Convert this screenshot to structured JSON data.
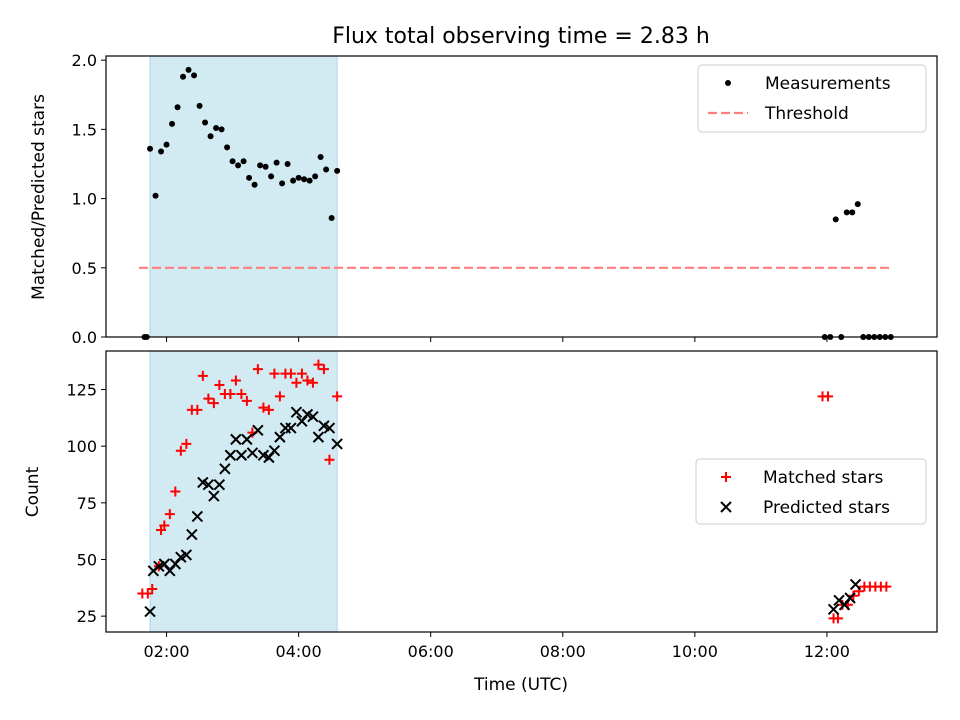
{
  "chart_data": {
    "title": "Flux total observing time = 2.83 h",
    "xlabel": "Time (UTC)",
    "xlim": [
      "01:05",
      "13:40"
    ],
    "x_ticks": [
      "02:00",
      "04:00",
      "06:00",
      "08:00",
      "10:00",
      "12:00"
    ],
    "shaded_span": {
      "x": [
        "01:45",
        "04:35"
      ],
      "color": "#add8e6"
    },
    "panels": [
      {
        "type": "scatter",
        "ylabel": "Matched/Predicted stars",
        "ylim": [
          0,
          2.03
        ],
        "y_ticks": [
          "0.0",
          "0.5",
          "1.0",
          "1.5",
          "2.0"
        ],
        "legend_position": "top-right",
        "series": [
          {
            "name": "Measurements",
            "marker": "dot",
            "color": "#000000",
            "points": [
              [
                "01:40",
                0
              ],
              [
                "01:42",
                0
              ],
              [
                "01:45",
                1.36
              ],
              [
                "01:50",
                1.02
              ],
              [
                "01:55",
                1.34
              ],
              [
                "02:00",
                1.39
              ],
              [
                "02:05",
                1.54
              ],
              [
                "02:10",
                1.66
              ],
              [
                "02:15",
                1.88
              ],
              [
                "02:20",
                1.93
              ],
              [
                "02:25",
                1.89
              ],
              [
                "02:30",
                1.67
              ],
              [
                "02:35",
                1.55
              ],
              [
                "02:40",
                1.45
              ],
              [
                "02:45",
                1.51
              ],
              [
                "02:50",
                1.5
              ],
              [
                "02:55",
                1.37
              ],
              [
                "03:00",
                1.27
              ],
              [
                "03:05",
                1.24
              ],
              [
                "03:10",
                1.27
              ],
              [
                "03:15",
                1.15
              ],
              [
                "03:20",
                1.1
              ],
              [
                "03:25",
                1.24
              ],
              [
                "03:30",
                1.23
              ],
              [
                "03:35",
                1.16
              ],
              [
                "03:40",
                1.26
              ],
              [
                "03:45",
                1.11
              ],
              [
                "03:50",
                1.25
              ],
              [
                "03:55",
                1.13
              ],
              [
                "04:00",
                1.15
              ],
              [
                "04:05",
                1.14
              ],
              [
                "04:10",
                1.13
              ],
              [
                "04:15",
                1.16
              ],
              [
                "04:20",
                1.3
              ],
              [
                "04:25",
                1.21
              ],
              [
                "04:30",
                0.86
              ],
              [
                "04:35",
                1.2
              ],
              [
                "11:58",
                0
              ],
              [
                "12:03",
                0
              ],
              [
                "12:08",
                0.85
              ],
              [
                "12:13",
                0
              ],
              [
                "12:18",
                0.9
              ],
              [
                "12:23",
                0.9
              ],
              [
                "12:28",
                0.96
              ],
              [
                "12:33",
                0
              ],
              [
                "12:38",
                0
              ],
              [
                "12:43",
                0
              ],
              [
                "12:48",
                0
              ],
              [
                "12:53",
                0
              ],
              [
                "12:58",
                0
              ]
            ]
          },
          {
            "name": "Threshold",
            "style": "dashed-line",
            "color": "#ff7f7f",
            "x": [
              "01:35",
              "13:00"
            ],
            "y": [
              0.5,
              0.5
            ]
          }
        ]
      },
      {
        "type": "scatter",
        "ylabel": "Count",
        "ylim": [
          18,
          142
        ],
        "y_ticks": [
          "25",
          "50",
          "75",
          "100",
          "125"
        ],
        "legend_position": "center-right",
        "series": [
          {
            "name": "Matched stars",
            "marker": "plus",
            "color": "#ff0000",
            "points": [
              [
                "01:38",
                35
              ],
              [
                "01:43",
                35
              ],
              [
                "01:47",
                37
              ],
              [
                "01:53",
                47
              ],
              [
                "01:55",
                63
              ],
              [
                "01:58",
                65
              ],
              [
                "02:03",
                70
              ],
              [
                "02:08",
                80
              ],
              [
                "02:13",
                98
              ],
              [
                "02:18",
                101
              ],
              [
                "02:23",
                116
              ],
              [
                "02:28",
                116
              ],
              [
                "02:33",
                131
              ],
              [
                "02:38",
                121
              ],
              [
                "02:43",
                119
              ],
              [
                "02:48",
                127
              ],
              [
                "02:53",
                123
              ],
              [
                "02:58",
                123
              ],
              [
                "03:03",
                129
              ],
              [
                "03:08",
                123
              ],
              [
                "03:13",
                120
              ],
              [
                "03:18",
                106
              ],
              [
                "03:23",
                134
              ],
              [
                "03:28",
                117
              ],
              [
                "03:33",
                116
              ],
              [
                "03:38",
                132
              ],
              [
                "03:43",
                122
              ],
              [
                "03:48",
                132
              ],
              [
                "03:53",
                132
              ],
              [
                "03:58",
                128
              ],
              [
                "04:03",
                132
              ],
              [
                "04:08",
                129
              ],
              [
                "04:13",
                128
              ],
              [
                "04:18",
                136
              ],
              [
                "04:23",
                134
              ],
              [
                "04:28",
                94
              ],
              [
                "04:35",
                122
              ],
              [
                "11:56",
                122
              ],
              [
                "12:01",
                122
              ],
              [
                "12:06",
                24
              ],
              [
                "12:10",
                24
              ],
              [
                "12:14",
                30
              ],
              [
                "12:19",
                30
              ],
              [
                "12:24",
                34
              ],
              [
                "12:29",
                36
              ],
              [
                "12:34",
                38
              ],
              [
                "12:39",
                38
              ],
              [
                "12:44",
                38
              ],
              [
                "12:49",
                38
              ],
              [
                "12:54",
                38
              ]
            ]
          },
          {
            "name": "Predicted stars",
            "marker": "x",
            "color": "#000000",
            "points": [
              [
                "01:45",
                27
              ],
              [
                "01:48",
                45
              ],
              [
                "01:53",
                47
              ],
              [
                "01:58",
                48
              ],
              [
                "02:03",
                45
              ],
              [
                "02:08",
                48
              ],
              [
                "02:13",
                51
              ],
              [
                "02:18",
                52
              ],
              [
                "02:23",
                61
              ],
              [
                "02:28",
                69
              ],
              [
                "02:33",
                84
              ],
              [
                "02:38",
                83
              ],
              [
                "02:43",
                78
              ],
              [
                "02:48",
                83
              ],
              [
                "02:53",
                90
              ],
              [
                "02:58",
                96
              ],
              [
                "03:03",
                103
              ],
              [
                "03:08",
                96
              ],
              [
                "03:13",
                103
              ],
              [
                "03:18",
                97
              ],
              [
                "03:23",
                107
              ],
              [
                "03:28",
                96
              ],
              [
                "03:33",
                95
              ],
              [
                "03:38",
                98
              ],
              [
                "03:43",
                104
              ],
              [
                "03:48",
                108
              ],
              [
                "03:53",
                108
              ],
              [
                "03:58",
                115
              ],
              [
                "04:03",
                111
              ],
              [
                "04:08",
                114
              ],
              [
                "04:13",
                113
              ],
              [
                "04:18",
                104
              ],
              [
                "04:23",
                109
              ],
              [
                "04:28",
                108
              ],
              [
                "04:35",
                101
              ],
              [
                "12:06",
                28
              ],
              [
                "12:11",
                32
              ],
              [
                "12:16",
                30
              ],
              [
                "12:21",
                33
              ],
              [
                "12:26",
                39
              ]
            ]
          }
        ]
      }
    ]
  }
}
